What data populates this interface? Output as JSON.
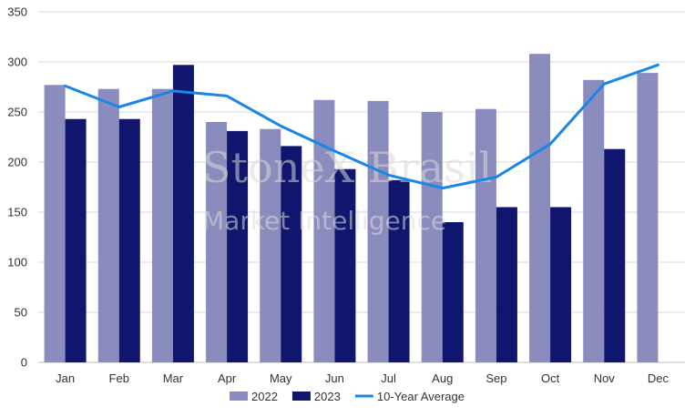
{
  "chart_data": {
    "type": "bar",
    "categories": [
      "Jan",
      "Feb",
      "Mar",
      "Apr",
      "May",
      "Jun",
      "Jul",
      "Aug",
      "Sep",
      "Oct",
      "Nov",
      "Dec"
    ],
    "series": [
      {
        "name": "2022",
        "type": "bar",
        "color": "#8a8cbd",
        "values": [
          277,
          273,
          273,
          240,
          233,
          262,
          261,
          250,
          253,
          308,
          282,
          289
        ]
      },
      {
        "name": "2023",
        "type": "bar",
        "color": "#10156e",
        "values": [
          243,
          243,
          297,
          231,
          216,
          193,
          182,
          140,
          155,
          155,
          213,
          null
        ]
      },
      {
        "name": "10-Year Average",
        "type": "line",
        "color": "#1a86e8",
        "values": [
          276,
          255,
          271,
          266,
          236,
          211,
          187,
          174,
          185,
          218,
          278,
          297
        ]
      }
    ],
    "ylim": [
      0,
      350
    ],
    "yticks": [
      "0",
      "50",
      "100",
      "150",
      "200",
      "250",
      "300",
      "350"
    ],
    "grid": true,
    "legend_position": "bottom",
    "watermark": {
      "line1": "StoneX Brasil",
      "line2": "Market Intelligence"
    }
  }
}
